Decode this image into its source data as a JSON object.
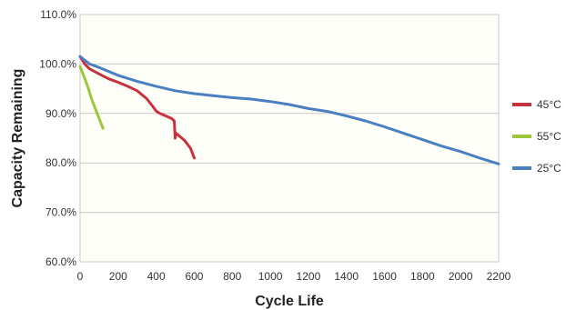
{
  "chart_data": {
    "type": "line",
    "title": "",
    "xlabel": "Cycle Life",
    "ylabel": "Capacity Remaining",
    "xlim": [
      0,
      2200
    ],
    "ylim": [
      60,
      110
    ],
    "x_ticks": [
      0,
      200,
      400,
      600,
      800,
      1000,
      1200,
      1400,
      1600,
      1800,
      2000,
      2200
    ],
    "y_ticks": [
      60,
      70,
      80,
      90,
      100,
      110
    ],
    "x_tick_labels": [
      "0",
      "200",
      "400",
      "600",
      "800",
      "1000",
      "1200",
      "1400",
      "1600",
      "1800",
      "2000",
      "2200"
    ],
    "y_tick_labels": [
      "60.0%",
      "70.0%",
      "80.0%",
      "90.0%",
      "100.0%",
      "110.0%"
    ],
    "grid": "horizontal",
    "legend_position": "right",
    "series": [
      {
        "name": "45°C",
        "color": "#c8323e",
        "x": [
          0,
          25,
          50,
          100,
          150,
          200,
          250,
          300,
          350,
          380,
          400,
          420,
          450,
          480,
          495,
          500,
          505,
          520,
          550,
          580,
          600
        ],
        "y": [
          101.5,
          100,
          99,
          98,
          97,
          96.3,
          95.5,
          94.6,
          93,
          91.5,
          90.5,
          90,
          89.5,
          89,
          88.5,
          85,
          86,
          85.5,
          84.5,
          83,
          81
        ]
      },
      {
        "name": "55°C",
        "color": "#9dc63b",
        "x": [
          0,
          20,
          40,
          60,
          80,
          100,
          120
        ],
        "y": [
          99.5,
          97.5,
          95.5,
          93,
          91,
          89,
          87
        ]
      },
      {
        "name": "25°C",
        "color": "#4a7fc1",
        "x": [
          0,
          50,
          100,
          200,
          300,
          400,
          500,
          600,
          700,
          800,
          900,
          1000,
          1100,
          1200,
          1300,
          1400,
          1500,
          1600,
          1700,
          1800,
          1900,
          2000,
          2100,
          2200
        ],
        "y": [
          101.5,
          100,
          99.3,
          97.7,
          96.5,
          95.5,
          94.6,
          94,
          93.6,
          93.2,
          92.9,
          92.4,
          91.8,
          91,
          90.4,
          89.5,
          88.5,
          87.3,
          86,
          84.7,
          83.4,
          82.3,
          81,
          79.8
        ]
      }
    ]
  }
}
